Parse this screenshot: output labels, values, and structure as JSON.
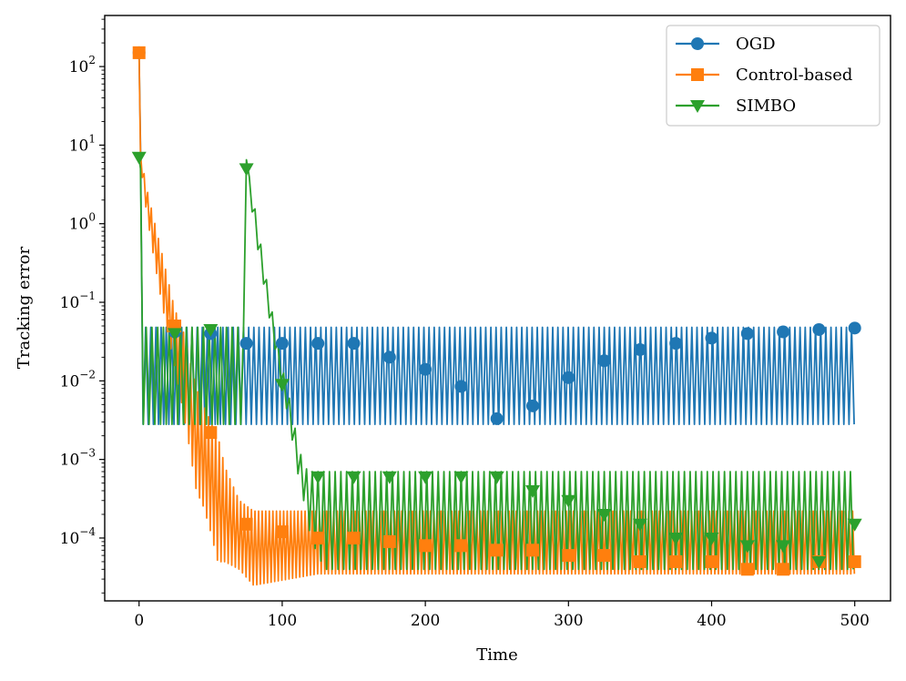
{
  "chart_data": {
    "type": "line",
    "title": "",
    "xlabel": "Time",
    "ylabel": "Tracking error",
    "xlim": [
      -24,
      525
    ],
    "ylim_log10": [
      -4.8,
      2.65
    ],
    "yscale": "log",
    "grid": false,
    "legend_position": "top-right",
    "x_ticks": [
      0,
      100,
      200,
      300,
      400,
      500
    ],
    "x_tick_labels": [
      "0",
      "100",
      "200",
      "300",
      "400",
      "500"
    ],
    "y_ticks_log10": [
      -4,
      -3,
      -2,
      -1,
      0,
      1,
      2
    ],
    "y_tick_labels": [
      {
        "base": "10",
        "exp": "−4"
      },
      {
        "base": "10",
        "exp": "−3"
      },
      {
        "base": "10",
        "exp": "−2"
      },
      {
        "base": "10",
        "exp": "−1"
      },
      {
        "base": "10",
        "exp": "0"
      },
      {
        "base": "10",
        "exp": "1"
      },
      {
        "base": "10",
        "exp": "2"
      }
    ],
    "series": [
      {
        "name": "OGD",
        "color": "#1f77b4",
        "marker": "circle",
        "envelope": [
          {
            "x": 0,
            "high": 150,
            "low": 150
          },
          {
            "x": 1,
            "high": 10,
            "low": 0.005
          },
          {
            "x": 2,
            "high": 0.048,
            "low": 0.0028
          },
          {
            "x": 500,
            "high": 0.048,
            "low": 0.0028
          }
        ],
        "oscillation_period": 3.6,
        "markers": [
          {
            "x": 0,
            "y": 150
          },
          {
            "x": 25,
            "y": 0.042
          },
          {
            "x": 50,
            "y": 0.04
          },
          {
            "x": 75,
            "y": 0.03
          },
          {
            "x": 100,
            "y": 0.03
          },
          {
            "x": 125,
            "y": 0.03
          },
          {
            "x": 150,
            "y": 0.03
          },
          {
            "x": 175,
            "y": 0.02
          },
          {
            "x": 200,
            "y": 0.014
          },
          {
            "x": 225,
            "y": 0.0085
          },
          {
            "x": 250,
            "y": 0.0033
          },
          {
            "x": 275,
            "y": 0.0048
          },
          {
            "x": 300,
            "y": 0.011
          },
          {
            "x": 325,
            "y": 0.018
          },
          {
            "x": 350,
            "y": 0.025
          },
          {
            "x": 375,
            "y": 0.03
          },
          {
            "x": 400,
            "y": 0.035
          },
          {
            "x": 425,
            "y": 0.04
          },
          {
            "x": 450,
            "y": 0.042
          },
          {
            "x": 475,
            "y": 0.045
          },
          {
            "x": 500,
            "y": 0.047
          }
        ]
      },
      {
        "name": "Control-based",
        "color": "#ff7f0e",
        "marker": "square",
        "envelope": [
          {
            "x": 0,
            "high": 150,
            "low": 150
          },
          {
            "x": 1,
            "high": 8,
            "low": 6
          },
          {
            "x": 5,
            "high": 3,
            "low": 1.5
          },
          {
            "x": 10,
            "high": 1.2,
            "low": 0.4
          },
          {
            "x": 15,
            "high": 0.5,
            "low": 0.12
          },
          {
            "x": 20,
            "high": 0.2,
            "low": 0.04
          },
          {
            "x": 25,
            "high": 0.08,
            "low": 0.015
          },
          {
            "x": 30,
            "high": 0.05,
            "low": 0.005
          },
          {
            "x": 35,
            "high": 0.02,
            "low": 0.0015
          },
          {
            "x": 40,
            "high": 0.008,
            "low": 0.0004
          },
          {
            "x": 45,
            "high": 0.005,
            "low": 0.00025
          },
          {
            "x": 50,
            "high": 0.003,
            "low": 0.00012
          },
          {
            "x": 55,
            "high": 0.002,
            "low": 5e-05
          },
          {
            "x": 60,
            "high": 0.0008,
            "low": 5e-05
          },
          {
            "x": 70,
            "high": 0.0003,
            "low": 4e-05
          },
          {
            "x": 80,
            "high": 0.00022,
            "low": 2.5e-05
          },
          {
            "x": 125,
            "high": 0.00022,
            "low": 3.5e-05
          },
          {
            "x": 126,
            "high": 0.00022,
            "low": 3.5e-05
          },
          {
            "x": 500,
            "high": 0.00022,
            "low": 3.5e-05
          }
        ],
        "oscillation_period": 2.5,
        "markers": [
          {
            "x": 0,
            "y": 150
          },
          {
            "x": 25,
            "y": 0.05
          },
          {
            "x": 50,
            "y": 0.0022
          },
          {
            "x": 75,
            "y": 0.00015
          },
          {
            "x": 100,
            "y": 0.00012
          },
          {
            "x": 125,
            "y": 0.0001
          },
          {
            "x": 150,
            "y": 0.0001
          },
          {
            "x": 175,
            "y": 9e-05
          },
          {
            "x": 200,
            "y": 8e-05
          },
          {
            "x": 225,
            "y": 8e-05
          },
          {
            "x": 250,
            "y": 7e-05
          },
          {
            "x": 275,
            "y": 7e-05
          },
          {
            "x": 300,
            "y": 6e-05
          },
          {
            "x": 325,
            "y": 6e-05
          },
          {
            "x": 350,
            "y": 5e-05
          },
          {
            "x": 375,
            "y": 5e-05
          },
          {
            "x": 400,
            "y": 5e-05
          },
          {
            "x": 425,
            "y": 4e-05
          },
          {
            "x": 450,
            "y": 4e-05
          },
          {
            "x": 475,
            "y": 5e-05
          },
          {
            "x": 500,
            "y": 5e-05
          }
        ]
      },
      {
        "name": "SIMBO",
        "color": "#2ca02c",
        "marker": "triangle-down",
        "envelope": [
          {
            "x": 0,
            "high": 7,
            "low": 7
          },
          {
            "x": 1,
            "high": 5,
            "low": 0.003
          },
          {
            "x": 2,
            "high": 0.048,
            "low": 0.0028
          },
          {
            "x": 74,
            "high": 0.048,
            "low": 0.0028
          },
          {
            "x": 75,
            "high": 6.5,
            "low": 6.5
          },
          {
            "x": 76,
            "high": 5,
            "low": 4
          },
          {
            "x": 80,
            "high": 2,
            "low": 1
          },
          {
            "x": 90,
            "high": 0.15,
            "low": 0.08
          },
          {
            "x": 100,
            "high": 0.015,
            "low": 0.008
          },
          {
            "x": 105,
            "high": 0.006,
            "low": 0.003
          },
          {
            "x": 110,
            "high": 0.002,
            "low": 0.0008
          },
          {
            "x": 115,
            "high": 0.0008,
            "low": 0.0003
          },
          {
            "x": 120,
            "high": 0.0007,
            "low": 0.0001
          },
          {
            "x": 125,
            "high": 0.0007,
            "low": 6e-05
          },
          {
            "x": 130,
            "high": 0.0007,
            "low": 4e-05
          },
          {
            "x": 500,
            "high": 0.0007,
            "low": 4e-05
          }
        ],
        "oscillation_period": 4.0,
        "markers": [
          {
            "x": 0,
            "y": 7
          },
          {
            "x": 25,
            "y": 0.04
          },
          {
            "x": 50,
            "y": 0.045
          },
          {
            "x": 75,
            "y": 5
          },
          {
            "x": 100,
            "y": 0.009
          },
          {
            "x": 125,
            "y": 0.0006
          },
          {
            "x": 150,
            "y": 0.0006
          },
          {
            "x": 175,
            "y": 0.0006
          },
          {
            "x": 200,
            "y": 0.0006
          },
          {
            "x": 225,
            "y": 0.0006
          },
          {
            "x": 250,
            "y": 0.0006
          },
          {
            "x": 275,
            "y": 0.0004
          },
          {
            "x": 300,
            "y": 0.0003
          },
          {
            "x": 325,
            "y": 0.0002
          },
          {
            "x": 350,
            "y": 0.00015
          },
          {
            "x": 375,
            "y": 0.0001
          },
          {
            "x": 400,
            "y": 0.0001
          },
          {
            "x": 425,
            "y": 8e-05
          },
          {
            "x": 450,
            "y": 8e-05
          },
          {
            "x": 475,
            "y": 5e-05
          },
          {
            "x": 500,
            "y": 0.00015
          }
        ]
      }
    ]
  }
}
